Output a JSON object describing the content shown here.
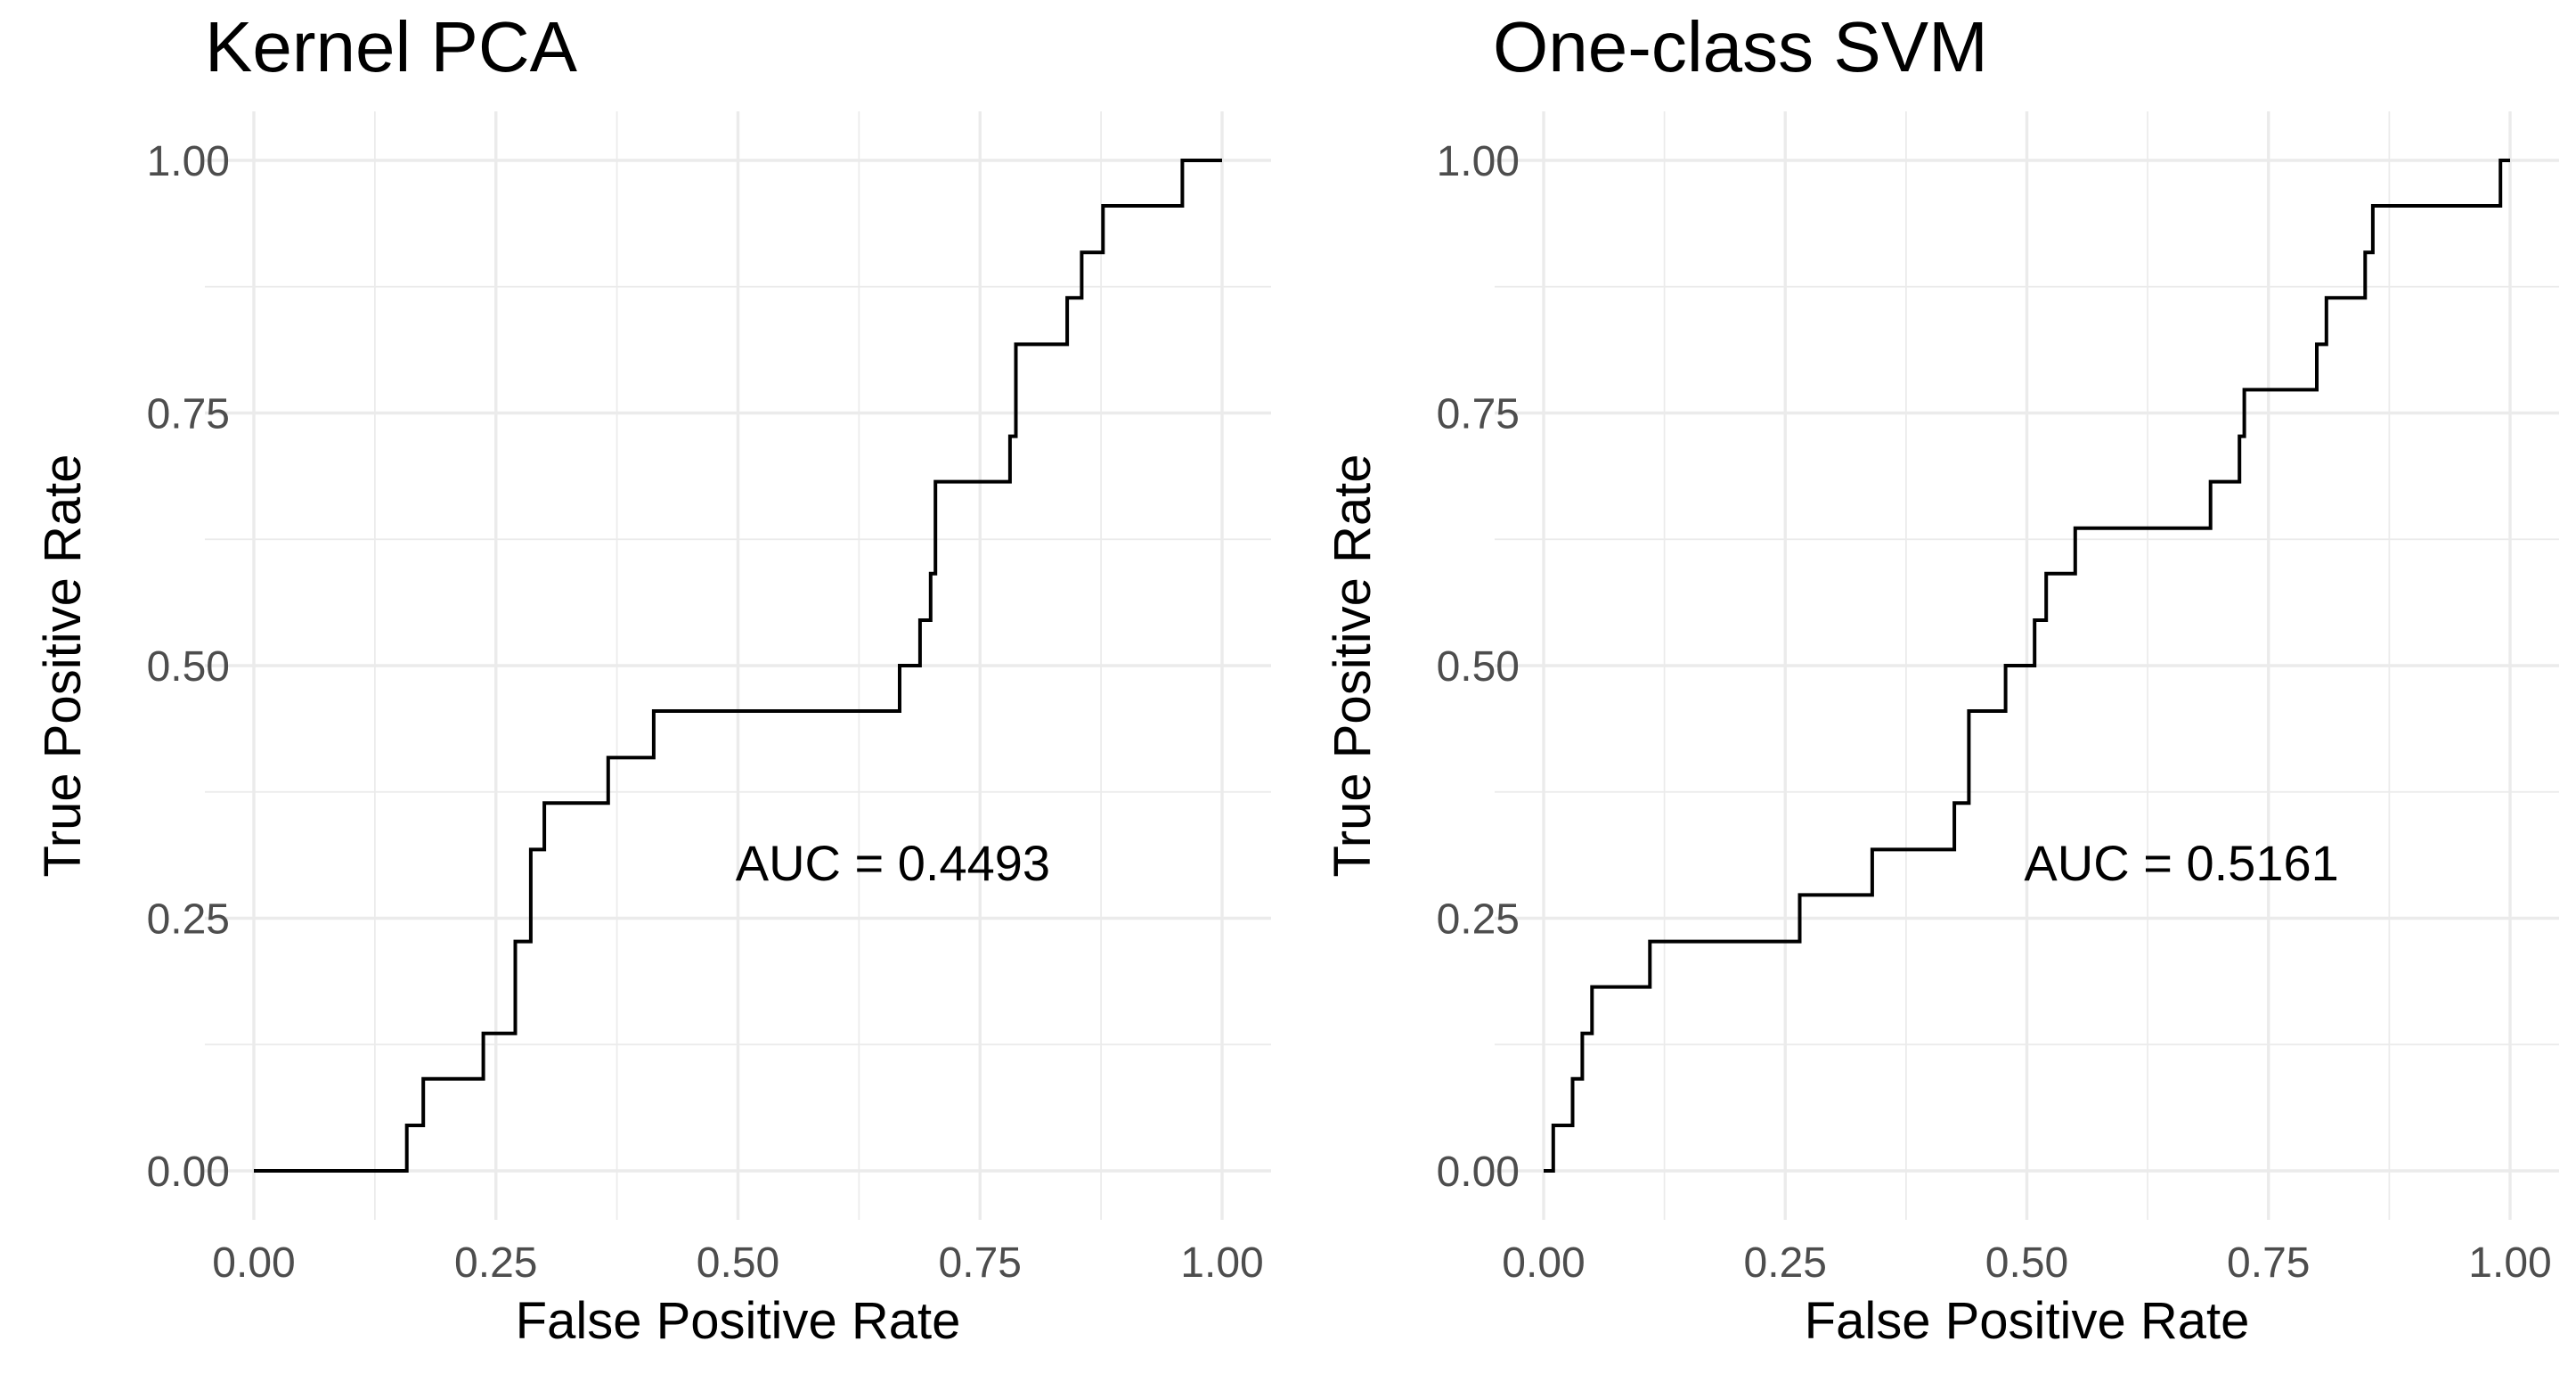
{
  "chart_data": [
    {
      "type": "line",
      "title": "Kernel PCA",
      "xlabel": "False Positive Rate",
      "ylabel": "True Positive Rate",
      "xlim": [
        0,
        1
      ],
      "ylim": [
        0,
        1
      ],
      "x_ticks": [
        "0.00",
        "0.25",
        "0.50",
        "0.75",
        "1.00"
      ],
      "y_ticks": [
        "0.00",
        "0.25",
        "0.50",
        "0.75",
        "1.00"
      ],
      "grid": true,
      "annotation": {
        "text": "AUC = 0.4493",
        "x": 0.66,
        "y": 0.305
      },
      "step_points": [
        [
          0,
          0
        ],
        [
          0.158,
          0
        ],
        [
          0.158,
          0.045
        ],
        [
          0.175,
          0.045
        ],
        [
          0.175,
          0.091
        ],
        [
          0.237,
          0.091
        ],
        [
          0.237,
          0.136
        ],
        [
          0.27,
          0.136
        ],
        [
          0.27,
          0.227
        ],
        [
          0.286,
          0.227
        ],
        [
          0.286,
          0.318
        ],
        [
          0.3,
          0.318
        ],
        [
          0.3,
          0.364
        ],
        [
          0.366,
          0.364
        ],
        [
          0.366,
          0.409
        ],
        [
          0.413,
          0.409
        ],
        [
          0.413,
          0.455
        ],
        [
          0.667,
          0.455
        ],
        [
          0.667,
          0.5
        ],
        [
          0.688,
          0.5
        ],
        [
          0.688,
          0.545
        ],
        [
          0.699,
          0.545
        ],
        [
          0.699,
          0.591
        ],
        [
          0.704,
          0.591
        ],
        [
          0.704,
          0.682
        ],
        [
          0.781,
          0.682
        ],
        [
          0.781,
          0.727
        ],
        [
          0.787,
          0.727
        ],
        [
          0.787,
          0.818
        ],
        [
          0.84,
          0.818
        ],
        [
          0.84,
          0.864
        ],
        [
          0.855,
          0.864
        ],
        [
          0.855,
          0.909
        ],
        [
          0.877,
          0.909
        ],
        [
          0.877,
          0.955
        ],
        [
          0.959,
          0.955
        ],
        [
          0.959,
          1.0
        ],
        [
          1.0,
          1.0
        ]
      ]
    },
    {
      "type": "line",
      "title": "One-class SVM",
      "xlabel": "False Positive Rate",
      "ylabel": "True Positive Rate",
      "xlim": [
        0,
        1
      ],
      "ylim": [
        0,
        1
      ],
      "x_ticks": [
        "0.00",
        "0.25",
        "0.50",
        "0.75",
        "1.00"
      ],
      "y_ticks": [
        "0.00",
        "0.25",
        "0.50",
        "0.75",
        "1.00"
      ],
      "grid": true,
      "annotation": {
        "text": "AUC = 0.5161",
        "x": 0.66,
        "y": 0.305
      },
      "step_points": [
        [
          0,
          0
        ],
        [
          0.01,
          0
        ],
        [
          0.01,
          0.045
        ],
        [
          0.03,
          0.045
        ],
        [
          0.03,
          0.091
        ],
        [
          0.04,
          0.091
        ],
        [
          0.04,
          0.136
        ],
        [
          0.05,
          0.136
        ],
        [
          0.05,
          0.182
        ],
        [
          0.11,
          0.182
        ],
        [
          0.11,
          0.227
        ],
        [
          0.265,
          0.227
        ],
        [
          0.265,
          0.273
        ],
        [
          0.34,
          0.273
        ],
        [
          0.34,
          0.318
        ],
        [
          0.425,
          0.318
        ],
        [
          0.425,
          0.364
        ],
        [
          0.44,
          0.364
        ],
        [
          0.44,
          0.455
        ],
        [
          0.478,
          0.455
        ],
        [
          0.478,
          0.5
        ],
        [
          0.508,
          0.5
        ],
        [
          0.508,
          0.545
        ],
        [
          0.52,
          0.545
        ],
        [
          0.52,
          0.591
        ],
        [
          0.55,
          0.591
        ],
        [
          0.55,
          0.636
        ],
        [
          0.69,
          0.636
        ],
        [
          0.69,
          0.682
        ],
        [
          0.72,
          0.682
        ],
        [
          0.72,
          0.727
        ],
        [
          0.725,
          0.727
        ],
        [
          0.725,
          0.773
        ],
        [
          0.8,
          0.773
        ],
        [
          0.8,
          0.818
        ],
        [
          0.81,
          0.818
        ],
        [
          0.81,
          0.864
        ],
        [
          0.85,
          0.864
        ],
        [
          0.85,
          0.909
        ],
        [
          0.858,
          0.909
        ],
        [
          0.858,
          0.955
        ],
        [
          0.99,
          0.955
        ],
        [
          0.99,
          1.0
        ],
        [
          1.0,
          1.0
        ]
      ]
    }
  ]
}
